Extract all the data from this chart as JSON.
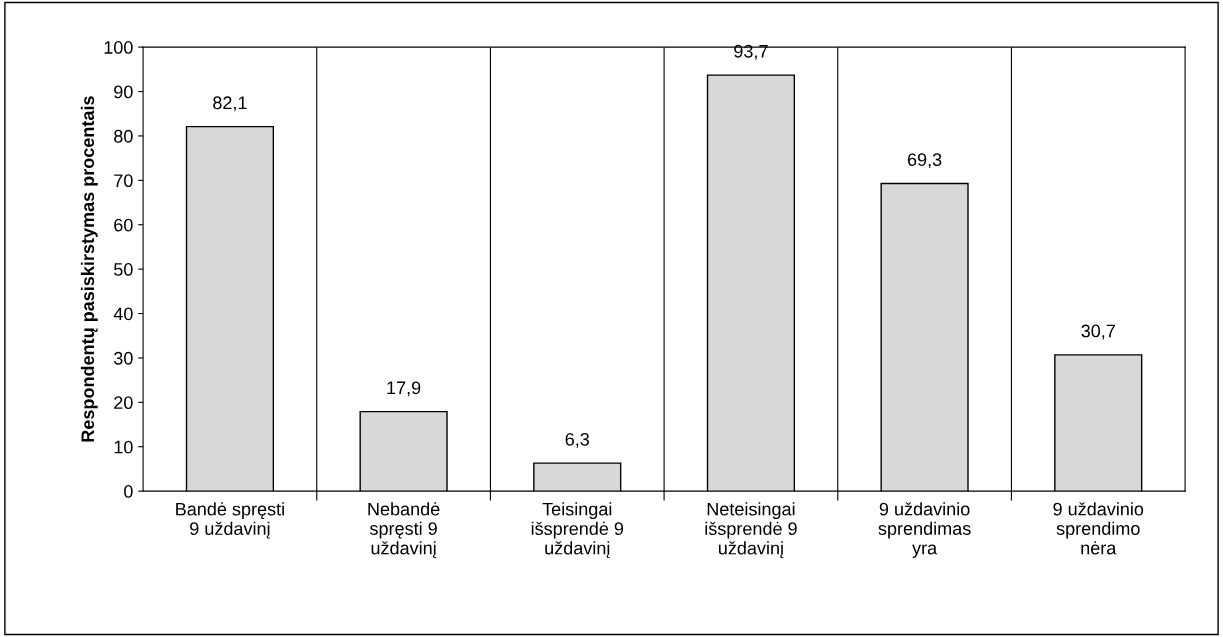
{
  "chart_data": {
    "type": "bar",
    "ylabel": "Respondentų pasiskirstymas procentais",
    "categories": [
      "Bandė spręsti\n9 uždavinį",
      "Nebandė\nspręsti 9\nuždavinį",
      "Teisingai\nišsprendė 9\nuždavinį",
      "Neteisingai\nišsprendė 9\nuždavinį",
      "9 uždavinio\nsprendimas\nyra",
      "9 uždavinio\nsprendimo\nnėra"
    ],
    "values": [
      82.1,
      17.9,
      6.3,
      93.7,
      69.3,
      30.7
    ],
    "value_labels": [
      "82,1",
      "17,9",
      "6,3",
      "93,7",
      "69,3",
      "30,7"
    ],
    "color": "#d8d8d8",
    "ylim": [
      0,
      100
    ],
    "yticks": [
      0,
      10,
      20,
      30,
      40,
      50,
      60,
      70,
      80,
      90,
      100
    ],
    "grid": "x"
  }
}
